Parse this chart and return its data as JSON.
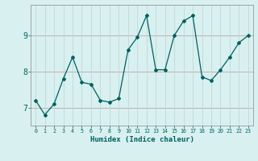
{
  "x": [
    0,
    1,
    2,
    3,
    4,
    5,
    6,
    7,
    8,
    9,
    10,
    11,
    12,
    13,
    14,
    15,
    16,
    17,
    18,
    19,
    20,
    21,
    22,
    23
  ],
  "y": [
    7.2,
    6.8,
    7.1,
    7.8,
    8.4,
    7.7,
    7.65,
    7.2,
    7.15,
    7.25,
    8.6,
    8.95,
    9.55,
    8.05,
    8.05,
    9.0,
    9.4,
    9.55,
    7.85,
    7.75,
    8.05,
    8.4,
    8.8,
    9.0
  ],
  "line_color": "#006060",
  "marker": "D",
  "marker_size": 2.0,
  "linewidth": 0.9,
  "xlabel": "Humidex (Indice chaleur)",
  "bg_color": "#d8f0f0",
  "grid_color_h": "#c8a0a0",
  "grid_color_v": "#c0d8d8",
  "yticks": [
    7,
    8,
    9
  ],
  "xtick_labels": [
    "0",
    "1",
    "2",
    "3",
    "4",
    "5",
    "6",
    "7",
    "8",
    "9",
    "10",
    "11",
    "12",
    "13",
    "14",
    "15",
    "16",
    "17",
    "18",
    "19",
    "20",
    "21",
    "22",
    "23"
  ],
  "xlim": [
    -0.5,
    23.5
  ],
  "ylim": [
    6.5,
    9.85
  ]
}
